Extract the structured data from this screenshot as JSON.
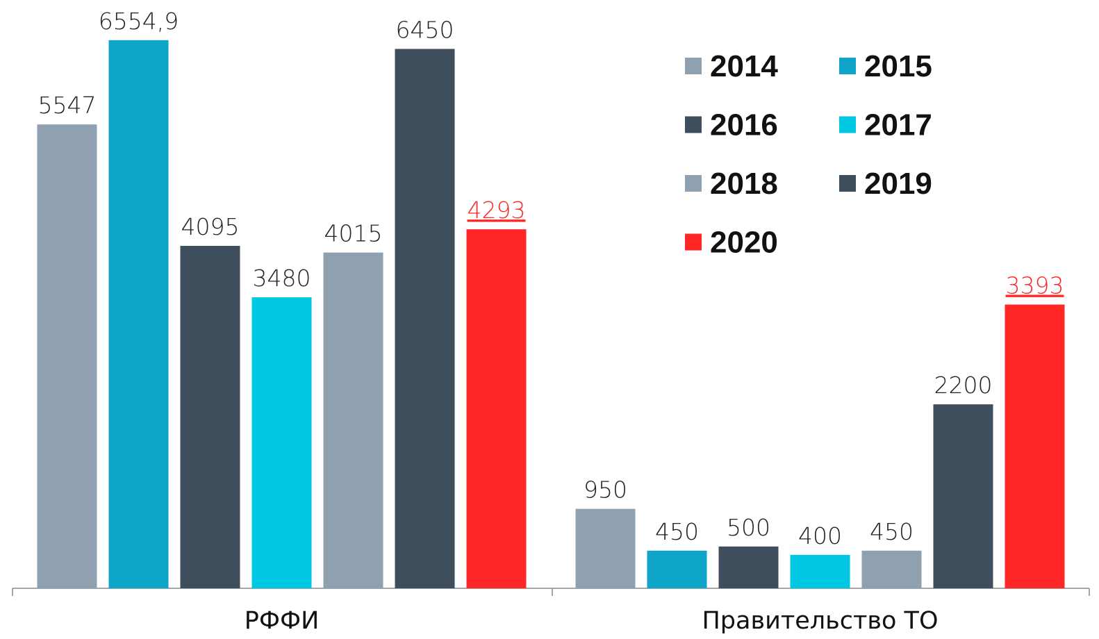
{
  "chart_data": {
    "type": "bar",
    "categories": [
      "РФФИ",
      "Правительство ТО"
    ],
    "series": [
      {
        "name": "2014",
        "color": "#8fa1b0",
        "values": [
          5547,
          950
        ]
      },
      {
        "name": "2015",
        "color": "#0ea5c9",
        "values": [
          6554.9,
          450
        ],
        "value_labels": [
          "6554,9",
          "450"
        ]
      },
      {
        "name": "2016",
        "color": "#3f4e5c",
        "values": [
          4095,
          500
        ]
      },
      {
        "name": "2017",
        "color": "#00c8e2",
        "values": [
          3480,
          400
        ]
      },
      {
        "name": "2018",
        "color": "#8fa1b0",
        "values": [
          4015,
          450
        ]
      },
      {
        "name": "2019",
        "color": "#3f4e5c",
        "values": [
          6450,
          2200
        ]
      },
      {
        "name": "2020",
        "color": "#ff2626",
        "values": [
          4293,
          3393
        ]
      }
    ],
    "ylim": [
      0,
      7035
    ],
    "grid": false
  }
}
